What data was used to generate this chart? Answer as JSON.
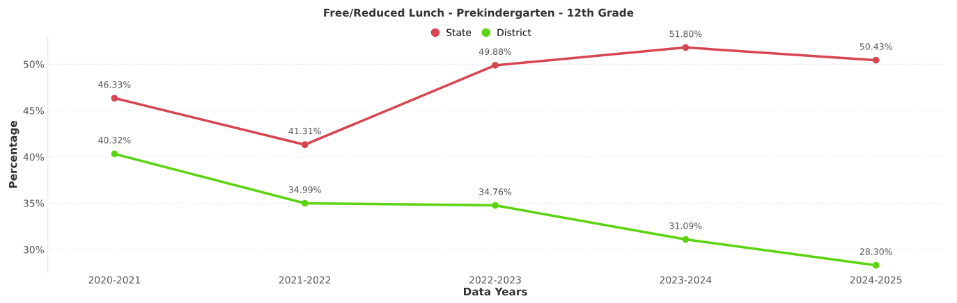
{
  "chart_data": {
    "type": "line",
    "title": "Free/Reduced Lunch - Prekindergarten - 12th Grade",
    "xlabel": "Data Years",
    "ylabel": "Percentage",
    "categories": [
      "2020-2021",
      "2021-2022",
      "2022-2023",
      "2023-2024",
      "2024-2025"
    ],
    "series": [
      {
        "name": "State",
        "color": "#d64550",
        "values": [
          46.33,
          41.31,
          49.88,
          51.8,
          50.43
        ],
        "value_labels": [
          "46.33%",
          "41.31%",
          "49.88%",
          "51.80%",
          "50.43%"
        ]
      },
      {
        "name": "District",
        "color": "#5ad40f",
        "values": [
          40.32,
          34.99,
          34.76,
          31.09,
          28.3
        ],
        "value_labels": [
          "40.32%",
          "34.99%",
          "34.76%",
          "31.09%",
          "28.30%"
        ]
      }
    ],
    "ylim": [
      27.5,
      53
    ],
    "yticks": [
      {
        "value": 30,
        "label": "30%"
      },
      {
        "value": 35,
        "label": "35%"
      },
      {
        "value": 40,
        "label": "40%"
      },
      {
        "value": 45,
        "label": "45%"
      },
      {
        "value": 50,
        "label": "50%"
      }
    ],
    "grid": "y",
    "legend": "top",
    "marker": "circle",
    "line_style": "solid"
  }
}
